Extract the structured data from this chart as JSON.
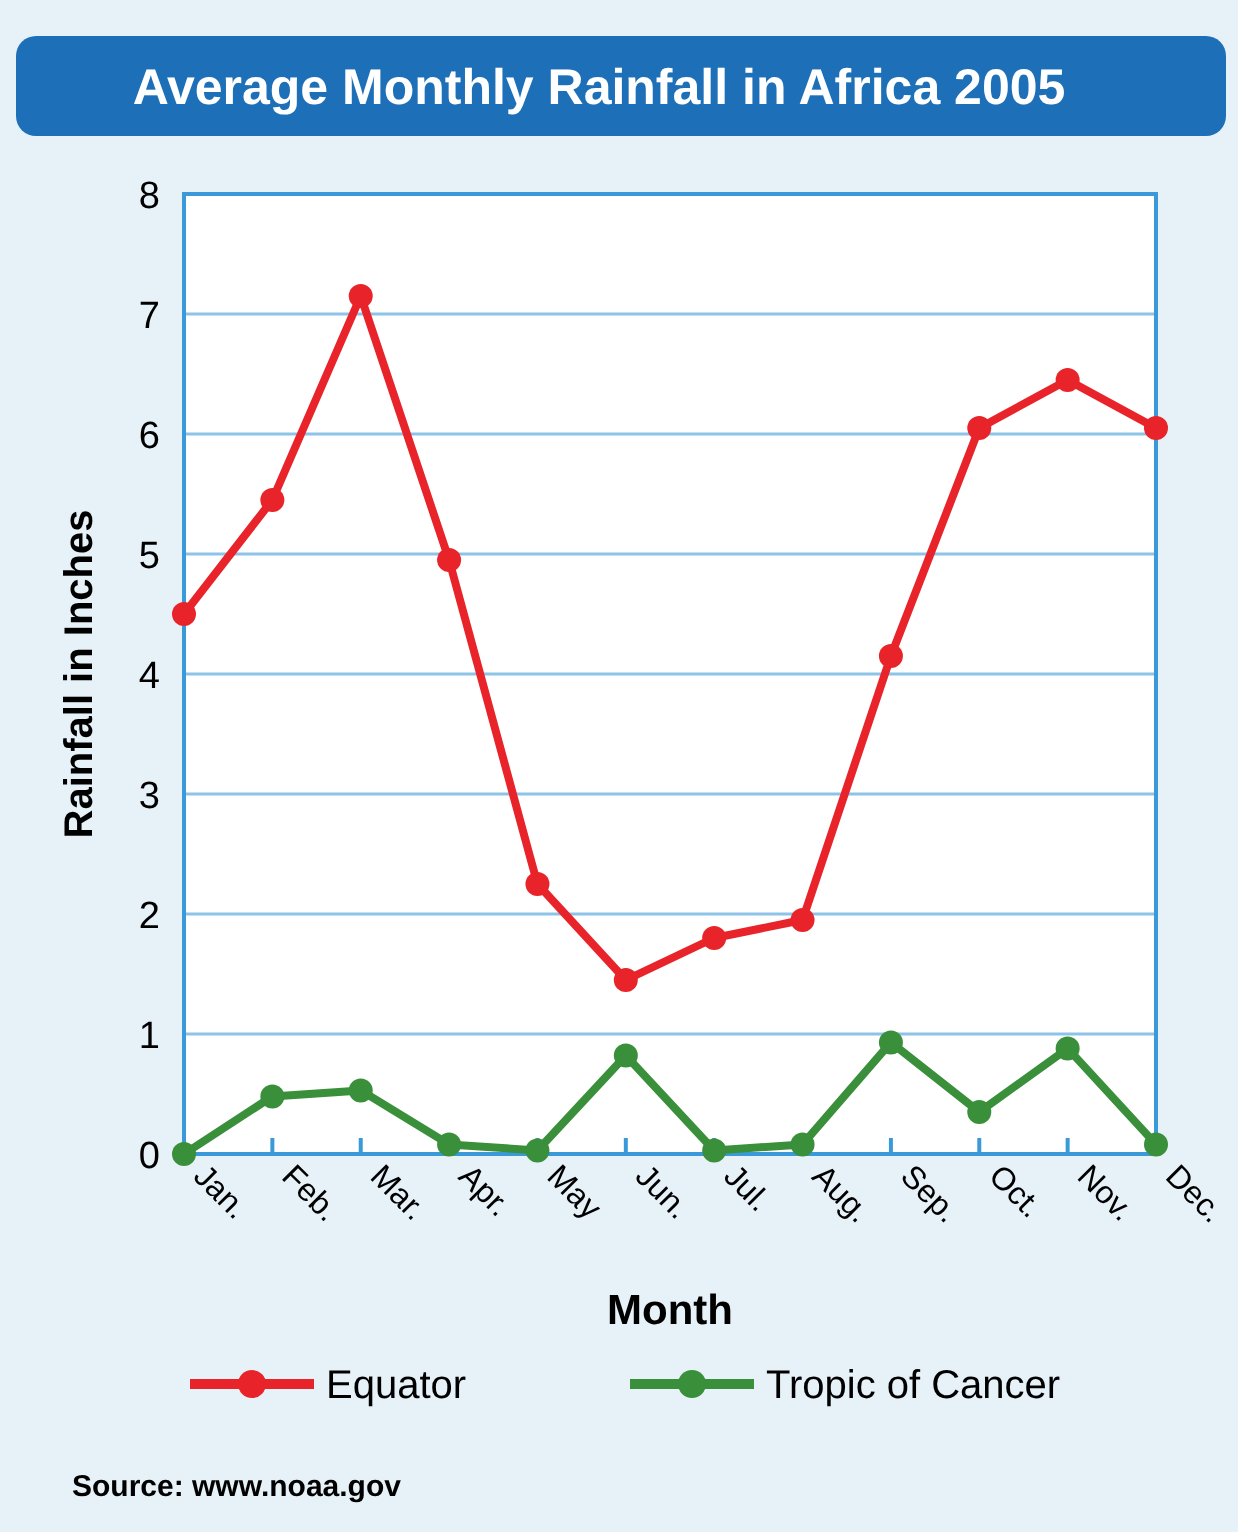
{
  "chart_data": {
    "type": "line",
    "title": "Average Monthly Rainfall in Africa 2005",
    "xlabel": "Month",
    "ylabel": "Rainfall in Inches",
    "categories": [
      "Jan.",
      "Feb.",
      "Mar.",
      "Apr.",
      "May",
      "Jun.",
      "Jul.",
      "Aug.",
      "Sep.",
      "Oct.",
      "Nov.",
      "Dec."
    ],
    "series": [
      {
        "name": "Equator",
        "color": "#e8242a",
        "values": [
          4.5,
          5.45,
          7.15,
          4.95,
          2.25,
          1.45,
          1.8,
          1.95,
          4.15,
          6.05,
          6.45,
          6.05
        ]
      },
      {
        "name": "Tropic of Cancer",
        "color": "#3a8f3a",
        "values": [
          0,
          0.48,
          0.53,
          0.08,
          0.03,
          0.82,
          0.03,
          0.08,
          0.93,
          0.35,
          0.88,
          0.08
        ]
      }
    ],
    "ylim": [
      0,
      8
    ],
    "yticks": [
      0,
      1,
      2,
      3,
      4,
      5,
      6,
      7,
      8
    ],
    "grid": "y",
    "legend": "bottom",
    "marker": "circle",
    "line_style": "solid",
    "annotations": [
      "Source: www.noaa.gov"
    ]
  }
}
